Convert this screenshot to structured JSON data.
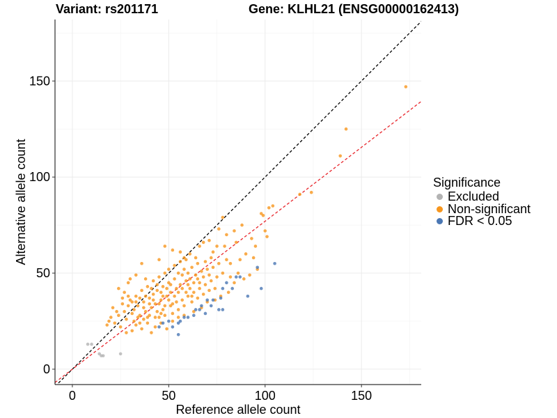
{
  "titles": {
    "left": "Variant: rs201171",
    "right": "Gene: KLHL21 (ENSG00000162413)"
  },
  "legend": {
    "title": "Significance",
    "items": [
      {
        "key": "excluded",
        "label": "Excluded",
        "color": "#b3b3b3"
      },
      {
        "key": "nonsig",
        "label": "Non-significant",
        "color": "#f7961d"
      },
      {
        "key": "fdr",
        "label": "FDR < 0.05",
        "color": "#4a77b4"
      }
    ]
  },
  "chart_data": {
    "type": "scatter",
    "xlabel": "Reference allele count",
    "ylabel": "Alternative allele count",
    "xlim": [
      -9,
      181
    ],
    "ylim": [
      -8,
      182
    ],
    "xticks": [
      0,
      50,
      100,
      150
    ],
    "yticks": [
      0,
      50,
      100,
      150
    ],
    "grid": true,
    "legend_position": "right",
    "reference_lines": [
      {
        "name": "identity",
        "slope": 1.0,
        "intercept": 0,
        "color": "#000000",
        "style": "dashed"
      },
      {
        "name": "fit",
        "slope": 0.77,
        "intercept": 0,
        "color": "#e8252b",
        "style": "dashed"
      }
    ],
    "series": [
      {
        "key": "excluded",
        "color": "#b3b3b3",
        "points": [
          [
            8,
            13
          ],
          [
            10,
            13
          ],
          [
            14,
            8
          ],
          [
            15,
            7
          ],
          [
            16,
            7
          ],
          [
            25,
            8
          ]
        ]
      },
      {
        "key": "nonsig",
        "color": "#f7961d",
        "points": [
          [
            173,
            147
          ],
          [
            142,
            125
          ],
          [
            139,
            111
          ],
          [
            124,
            92
          ],
          [
            118,
            91
          ],
          [
            104,
            85
          ],
          [
            102,
            84
          ],
          [
            98,
            81
          ],
          [
            99,
            80
          ],
          [
            88,
            75
          ],
          [
            84,
            72
          ],
          [
            80,
            70
          ],
          [
            100,
            72
          ],
          [
            93,
            68
          ],
          [
            95,
            64
          ],
          [
            78,
            79
          ],
          [
            76,
            73
          ],
          [
            85,
            66
          ],
          [
            90,
            60
          ],
          [
            87,
            57
          ],
          [
            82,
            55
          ],
          [
            94,
            58
          ],
          [
            101,
            69
          ],
          [
            79,
            64
          ],
          [
            75,
            64
          ],
          [
            73,
            61
          ],
          [
            71,
            67
          ],
          [
            68,
            66
          ],
          [
            66,
            64
          ],
          [
            64,
            58
          ],
          [
            61,
            60
          ],
          [
            48,
            64
          ],
          [
            45,
            57
          ],
          [
            52,
            62
          ],
          [
            56,
            61
          ],
          [
            59,
            57
          ],
          [
            38,
            47
          ],
          [
            36,
            55
          ],
          [
            33,
            49
          ],
          [
            30,
            47
          ],
          [
            29,
            45
          ],
          [
            27,
            40
          ],
          [
            24,
            42
          ],
          [
            26,
            34
          ],
          [
            21,
            32
          ],
          [
            20,
            27
          ],
          [
            22,
            24
          ],
          [
            19,
            25
          ],
          [
            18,
            23
          ],
          [
            31,
            20
          ],
          [
            28,
            19
          ],
          [
            25,
            22
          ],
          [
            33,
            23
          ],
          [
            36,
            21
          ],
          [
            39,
            24
          ],
          [
            41,
            19
          ],
          [
            43,
            22
          ],
          [
            46,
            24
          ],
          [
            49,
            21
          ],
          [
            52,
            25
          ],
          [
            55,
            27
          ],
          [
            58,
            28
          ],
          [
            63,
            30
          ],
          [
            67,
            32
          ],
          [
            70,
            35
          ],
          [
            74,
            36
          ],
          [
            77,
            38
          ],
          [
            81,
            40
          ],
          [
            84,
            45
          ],
          [
            89,
            47
          ],
          [
            92,
            49
          ],
          [
            96,
            52
          ],
          [
            32,
            31
          ],
          [
            34,
            33
          ],
          [
            37,
            35
          ],
          [
            40,
            37
          ],
          [
            42,
            39
          ],
          [
            44,
            41
          ],
          [
            47,
            43
          ],
          [
            50,
            45
          ],
          [
            53,
            47
          ],
          [
            57,
            49
          ],
          [
            60,
            50
          ],
          [
            62,
            53
          ],
          [
            65,
            55
          ],
          [
            69,
            56
          ],
          [
            72,
            58
          ],
          [
            35,
            28
          ],
          [
            38,
            30
          ],
          [
            41,
            32
          ],
          [
            43,
            34
          ],
          [
            46,
            36
          ],
          [
            49,
            38
          ],
          [
            51,
            40
          ],
          [
            54,
            42
          ],
          [
            56,
            44
          ],
          [
            59,
            46
          ],
          [
            61,
            47
          ],
          [
            64,
            49
          ],
          [
            67,
            51
          ],
          [
            70,
            52
          ],
          [
            30,
            36
          ],
          [
            33,
            38
          ],
          [
            36,
            41
          ],
          [
            39,
            43
          ],
          [
            42,
            46
          ],
          [
            45,
            48
          ],
          [
            48,
            50
          ],
          [
            50,
            52
          ],
          [
            53,
            54
          ],
          [
            56,
            56
          ],
          [
            58,
            58
          ],
          [
            27,
            30
          ],
          [
            29,
            33
          ],
          [
            31,
            35
          ],
          [
            34,
            27
          ],
          [
            37,
            26
          ],
          [
            40,
            28
          ],
          [
            44,
            30
          ],
          [
            47,
            31
          ],
          [
            51,
            33
          ],
          [
            54,
            35
          ],
          [
            57,
            36
          ],
          [
            60,
            38
          ],
          [
            63,
            40
          ],
          [
            66,
            42
          ],
          [
            69,
            44
          ],
          [
            72,
            46
          ],
          [
            75,
            48
          ],
          [
            78,
            50
          ],
          [
            82,
            48
          ],
          [
            86,
            50
          ],
          [
            24,
            28
          ],
          [
            23,
            30
          ],
          [
            28,
            26
          ],
          [
            32,
            25
          ],
          [
            35,
            24
          ],
          [
            39,
            27
          ],
          [
            45,
            27
          ],
          [
            48,
            28
          ],
          [
            52,
            29
          ],
          [
            55,
            31
          ],
          [
            58,
            33
          ],
          [
            62,
            35
          ],
          [
            65,
            37
          ],
          [
            68,
            39
          ],
          [
            71,
            41
          ],
          [
            74,
            42
          ],
          [
            44,
            44
          ],
          [
            46,
            40
          ],
          [
            41,
            42
          ],
          [
            38,
            38
          ],
          [
            40,
            34
          ],
          [
            42,
            36
          ],
          [
            45,
            34
          ],
          [
            47,
            38
          ],
          [
            49,
            42
          ],
          [
            51,
            44
          ],
          [
            53,
            38
          ],
          [
            55,
            40
          ],
          [
            57,
            42
          ],
          [
            59,
            40
          ],
          [
            61,
            42
          ],
          [
            63,
            45
          ],
          [
            65,
            47
          ],
          [
            55,
            50
          ],
          [
            58,
            52
          ],
          [
            60,
            44
          ],
          [
            50,
            36
          ],
          [
            52,
            34
          ],
          [
            48,
            33
          ],
          [
            46,
            29
          ],
          [
            43,
            27
          ],
          [
            37,
            32
          ],
          [
            35,
            37
          ],
          [
            33,
            35
          ],
          [
            31,
            29
          ],
          [
            29,
            38
          ],
          [
            26,
            37
          ],
          [
            62,
            38
          ],
          [
            66,
            45
          ],
          [
            68,
            48
          ],
          [
            71,
            49
          ],
          [
            73,
            53
          ],
          [
            76,
            55
          ],
          [
            80,
            57
          ]
        ]
      },
      {
        "key": "fdr",
        "color": "#4a77b4",
        "points": [
          [
            105,
            55
          ],
          [
            96,
            53
          ],
          [
            98,
            42
          ],
          [
            87,
            48
          ],
          [
            85,
            48
          ],
          [
            80,
            45
          ],
          [
            83,
            42
          ],
          [
            78,
            42
          ],
          [
            77,
            37
          ],
          [
            73,
            36
          ],
          [
            72,
            33
          ],
          [
            70,
            36
          ],
          [
            67,
            33
          ],
          [
            66,
            31
          ],
          [
            76,
            31
          ],
          [
            78,
            31
          ],
          [
            69,
            29
          ],
          [
            64,
            31
          ],
          [
            63,
            28
          ],
          [
            60,
            27
          ],
          [
            58,
            27
          ],
          [
            56,
            25
          ],
          [
            55,
            24
          ],
          [
            50,
            25
          ],
          [
            47,
            24
          ],
          [
            52,
            22
          ],
          [
            45,
            22
          ],
          [
            55,
            18
          ],
          [
            91,
            38
          ]
        ]
      }
    ]
  }
}
